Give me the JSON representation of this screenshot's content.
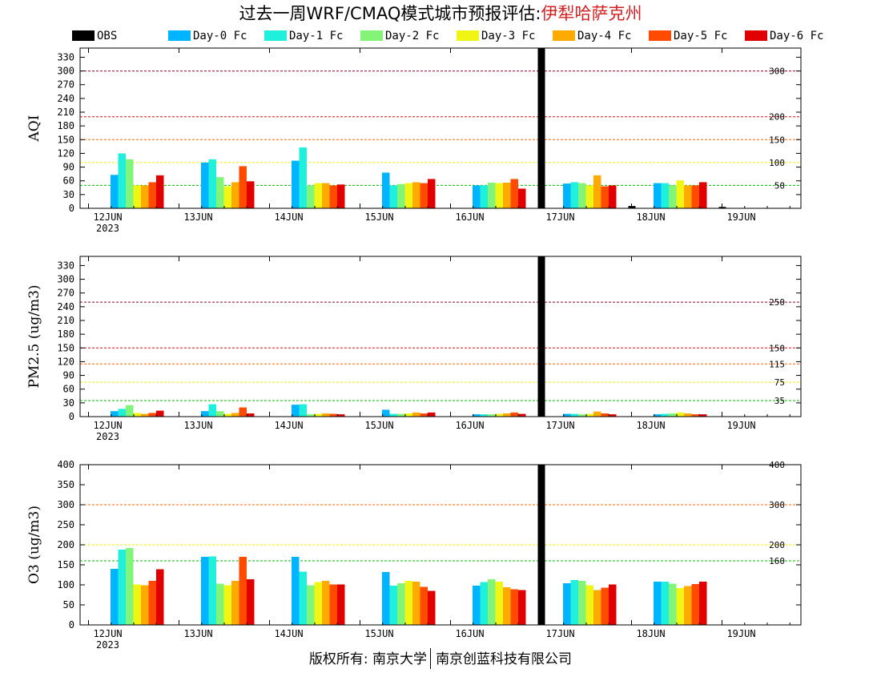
{
  "title": {
    "text": "过去一周WRF/CMAQ模式城市预报评估:",
    "city": "伊犁哈萨克州",
    "city_color": "#d42020"
  },
  "footer": {
    "left": "版权所有: 南京大学",
    "right": "南京创蓝科技有限公司"
  },
  "legend": [
    {
      "name": "OBS",
      "color": "#000000"
    },
    {
      "name": "Day-0 Fc",
      "color": "#00b4ff"
    },
    {
      "name": "Day-1 Fc",
      "color": "#1ef0dc"
    },
    {
      "name": "Day-2 Fc",
      "color": "#82f578"
    },
    {
      "name": "Day-3 Fc",
      "color": "#f0f514"
    },
    {
      "name": "Day-4 Fc",
      "color": "#ffaa00"
    },
    {
      "name": "Day-5 Fc",
      "color": "#ff4b00"
    },
    {
      "name": "Day-6 Fc",
      "color": "#e10000"
    }
  ],
  "chart_data": [
    {
      "type": "bar",
      "ylabel": "AQI",
      "categories": [
        "12JUN",
        "13JUN",
        "14JUN",
        "15JUN",
        "16JUN",
        "17JUN",
        "18JUN",
        "19JUN"
      ],
      "year_label": "2023",
      "ylim": [
        0,
        350
      ],
      "yticks": [
        0,
        30,
        60,
        90,
        120,
        150,
        180,
        210,
        240,
        270,
        300,
        330
      ],
      "thresholds": [
        {
          "value": 300,
          "label": "300",
          "color": "#8b0030"
        },
        {
          "value": 200,
          "label": "200",
          "color": "#dd1111"
        },
        {
          "value": 150,
          "label": "150",
          "color": "#ff6600"
        },
        {
          "value": 100,
          "label": "100",
          "color": "#eeee00"
        },
        {
          "value": 50,
          "label": "50",
          "color": "#00bb00"
        }
      ],
      "series": [
        {
          "name": "OBS",
          "values": [
            null,
            null,
            null,
            null,
            null,
            350,
            5,
            3
          ]
        },
        {
          "name": "Day-0 Fc",
          "values": [
            73,
            100,
            104,
            78,
            50,
            54,
            55,
            null
          ]
        },
        {
          "name": "Day-1 Fc",
          "values": [
            120,
            107,
            133,
            50,
            50,
            57,
            55,
            null
          ]
        },
        {
          "name": "Day-2 Fc",
          "values": [
            107,
            68,
            50,
            53,
            56,
            55,
            50,
            null
          ]
        },
        {
          "name": "Day-3 Fc",
          "values": [
            50,
            48,
            55,
            55,
            55,
            50,
            61,
            null
          ]
        },
        {
          "name": "Day-4 Fc",
          "values": [
            50,
            57,
            55,
            57,
            56,
            72,
            50,
            null
          ]
        },
        {
          "name": "Day-5 Fc",
          "values": [
            57,
            92,
            50,
            55,
            64,
            48,
            50,
            null
          ]
        },
        {
          "name": "Day-6 Fc",
          "values": [
            72,
            59,
            52,
            64,
            43,
            50,
            57,
            null
          ]
        }
      ]
    },
    {
      "type": "bar",
      "ylabel": "PM2.5 (ug/m3)",
      "categories": [
        "12JUN",
        "13JUN",
        "14JUN",
        "15JUN",
        "16JUN",
        "17JUN",
        "18JUN",
        "19JUN"
      ],
      "year_label": "2023",
      "ylim": [
        0,
        350
      ],
      "yticks": [
        0,
        30,
        60,
        90,
        120,
        150,
        180,
        210,
        240,
        270,
        300,
        330
      ],
      "thresholds": [
        {
          "value": 250,
          "label": "250",
          "color": "#8b0030"
        },
        {
          "value": 150,
          "label": "150",
          "color": "#dd1111"
        },
        {
          "value": 115,
          "label": "115",
          "color": "#ff6600"
        },
        {
          "value": 75,
          "label": "75",
          "color": "#eeee00"
        },
        {
          "value": 35,
          "label": "35",
          "color": "#00bb00"
        }
      ],
      "series": [
        {
          "name": "OBS",
          "values": [
            null,
            null,
            null,
            null,
            null,
            350,
            null,
            null
          ]
        },
        {
          "name": "Day-0 Fc",
          "values": [
            12,
            12,
            26,
            15,
            5,
            6,
            5,
            null
          ]
        },
        {
          "name": "Day-1 Fc",
          "values": [
            17,
            27,
            27,
            6,
            5,
            6,
            6,
            null
          ]
        },
        {
          "name": "Day-2 Fc",
          "values": [
            25,
            12,
            5,
            6,
            5,
            5,
            7,
            null
          ]
        },
        {
          "name": "Day-3 Fc",
          "values": [
            8,
            6,
            6,
            7,
            6,
            6,
            9,
            null
          ]
        },
        {
          "name": "Day-4 Fc",
          "values": [
            6,
            8,
            7,
            9,
            7,
            11,
            7,
            null
          ]
        },
        {
          "name": "Day-5 Fc",
          "values": [
            8,
            20,
            6,
            7,
            9,
            7,
            5,
            null
          ]
        },
        {
          "name": "Day-6 Fc",
          "values": [
            13,
            7,
            5,
            9,
            6,
            5,
            5,
            null
          ]
        }
      ]
    },
    {
      "type": "bar",
      "ylabel": "O3 (ug/m3)",
      "categories": [
        "12JUN",
        "13JUN",
        "14JUN",
        "15JUN",
        "16JUN",
        "17JUN",
        "18JUN",
        "19JUN"
      ],
      "year_label": "2023",
      "ylim": [
        0,
        400
      ],
      "yticks": [
        0,
        50,
        100,
        150,
        200,
        250,
        300,
        350,
        400
      ],
      "thresholds": [
        {
          "value": 400,
          "label": "400",
          "color": "#dd1111"
        },
        {
          "value": 300,
          "label": "300",
          "color": "#ff6600"
        },
        {
          "value": 200,
          "label": "200",
          "color": "#eeee00"
        },
        {
          "value": 160,
          "label": "160",
          "color": "#00bb00"
        }
      ],
      "series": [
        {
          "name": "OBS",
          "values": [
            null,
            null,
            null,
            null,
            null,
            400,
            null,
            null
          ]
        },
        {
          "name": "Day-0 Fc",
          "values": [
            140,
            170,
            170,
            132,
            98,
            104,
            108,
            null
          ]
        },
        {
          "name": "Day-1 Fc",
          "values": [
            188,
            171,
            133,
            98,
            107,
            112,
            108,
            null
          ]
        },
        {
          "name": "Day-2 Fc",
          "values": [
            192,
            103,
            99,
            104,
            114,
            110,
            103,
            null
          ]
        },
        {
          "name": "Day-3 Fc",
          "values": [
            101,
            99,
            107,
            110,
            108,
            99,
            92,
            null
          ]
        },
        {
          "name": "Day-4 Fc",
          "values": [
            99,
            110,
            110,
            108,
            94,
            87,
            97,
            null
          ]
        },
        {
          "name": "Day-5 Fc",
          "values": [
            110,
            170,
            101,
            95,
            89,
            93,
            102,
            null
          ]
        },
        {
          "name": "Day-6 Fc",
          "values": [
            139,
            114,
            101,
            85,
            87,
            101,
            108,
            null
          ]
        }
      ]
    }
  ]
}
